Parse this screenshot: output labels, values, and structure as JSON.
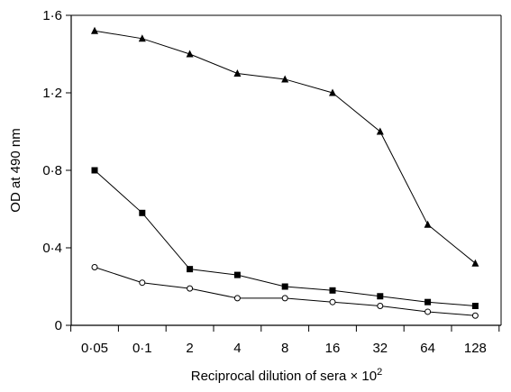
{
  "chart_data": {
    "type": "line",
    "xlabel": "Reciprocal dilution of sera × 10",
    "xlabel_superscript": "2",
    "ylabel": "OD at 490 nm",
    "categories": [
      "0·05",
      "0·1",
      "2",
      "4",
      "8",
      "16",
      "32",
      "64",
      "128"
    ],
    "ylim": [
      0,
      1.6
    ],
    "yticks": [
      {
        "value": 0,
        "label": "0"
      },
      {
        "value": 0.4,
        "label": "0·4"
      },
      {
        "value": 0.8,
        "label": "0·8"
      },
      {
        "value": 1.2,
        "label": "1·2"
      },
      {
        "value": 1.6,
        "label": "1·6"
      }
    ],
    "grid": false,
    "legend": "none",
    "series": [
      {
        "marker": "triangle",
        "color": "#000000",
        "values": [
          1.52,
          1.48,
          1.4,
          1.3,
          1.27,
          1.2,
          1.0,
          0.52,
          0.32
        ]
      },
      {
        "marker": "square",
        "color": "#000000",
        "values": [
          0.8,
          0.58,
          0.29,
          0.26,
          0.2,
          0.18,
          0.15,
          0.12,
          0.1
        ]
      },
      {
        "marker": "open-circle",
        "color": "#000000",
        "values": [
          0.3,
          0.22,
          0.19,
          0.14,
          0.14,
          0.12,
          0.1,
          0.07,
          0.05
        ]
      }
    ]
  }
}
